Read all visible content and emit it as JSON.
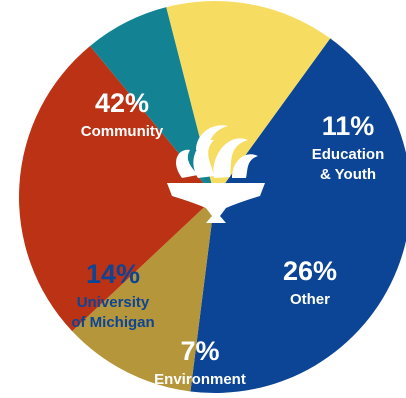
{
  "chart_data": {
    "type": "pie",
    "slices": [
      {
        "label_lines": [
          "Community"
        ],
        "value": 42,
        "pct_text": "42%",
        "color": "#0c4596",
        "text_color": "#ffffff"
      },
      {
        "label_lines": [
          "Education",
          "& Youth"
        ],
        "value": 11,
        "pct_text": "11%",
        "color": "#b5963a",
        "text_color": "#ffffff"
      },
      {
        "label_lines": [
          "Other"
        ],
        "value": 26,
        "pct_text": "26%",
        "color": "#bb3214",
        "text_color": "#ffffff"
      },
      {
        "label_lines": [
          "Environment"
        ],
        "value": 7,
        "pct_text": "7%",
        "color": "#138393",
        "text_color": "#ffffff"
      },
      {
        "label_lines": [
          "University",
          "of Michigan"
        ],
        "value": 14,
        "pct_text": "14%",
        "color": "#f6dd62",
        "text_color": "#0c4596"
      }
    ]
  },
  "colors": {
    "emblem": "#ffffff"
  },
  "icons": {
    "center": "flame-torch-icon"
  }
}
